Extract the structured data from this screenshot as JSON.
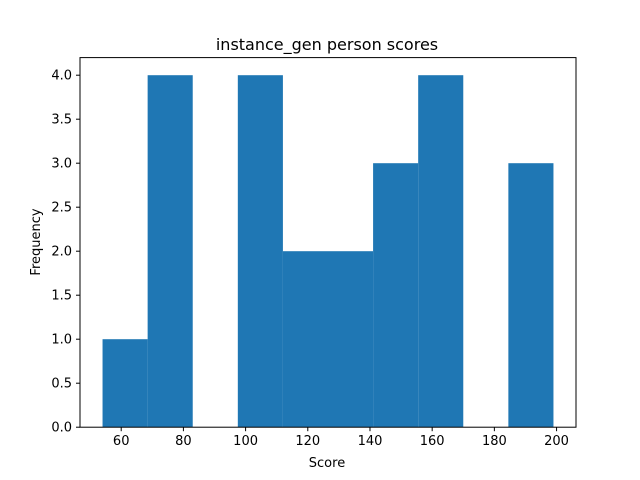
{
  "chart_data": {
    "type": "bar",
    "title": "instance_gen person scores",
    "xlabel": "Score",
    "ylabel": "Frequency",
    "bins": [
      {
        "x0": 54.0,
        "x1": 68.5,
        "count": 1
      },
      {
        "x0": 68.5,
        "x1": 83.0,
        "count": 4
      },
      {
        "x0": 83.0,
        "x1": 97.5,
        "count": 0
      },
      {
        "x0": 97.5,
        "x1": 112.0,
        "count": 4
      },
      {
        "x0": 112.0,
        "x1": 126.5,
        "count": 2
      },
      {
        "x0": 126.5,
        "x1": 141.0,
        "count": 2
      },
      {
        "x0": 141.0,
        "x1": 155.5,
        "count": 3
      },
      {
        "x0": 155.5,
        "x1": 170.0,
        "count": 4
      },
      {
        "x0": 170.0,
        "x1": 184.5,
        "count": 0
      },
      {
        "x0": 184.5,
        "x1": 199.0,
        "count": 3
      }
    ],
    "xlim": [
      46.75,
      206.25
    ],
    "ylim": [
      0,
      4.2
    ],
    "x_ticks": [
      60,
      80,
      100,
      120,
      140,
      160,
      180,
      200
    ],
    "y_ticks": [
      0.0,
      0.5,
      1.0,
      1.5,
      2.0,
      2.5,
      3.0,
      3.5,
      4.0
    ],
    "x_tick_labels": [
      "60",
      "80",
      "100",
      "120",
      "140",
      "160",
      "180",
      "200"
    ],
    "y_tick_labels": [
      "0.0",
      "0.5",
      "1.0",
      "1.5",
      "2.0",
      "2.5",
      "3.0",
      "3.5",
      "4.0"
    ],
    "bar_color": "#1f77b4",
    "grid": false,
    "legend": "none"
  }
}
